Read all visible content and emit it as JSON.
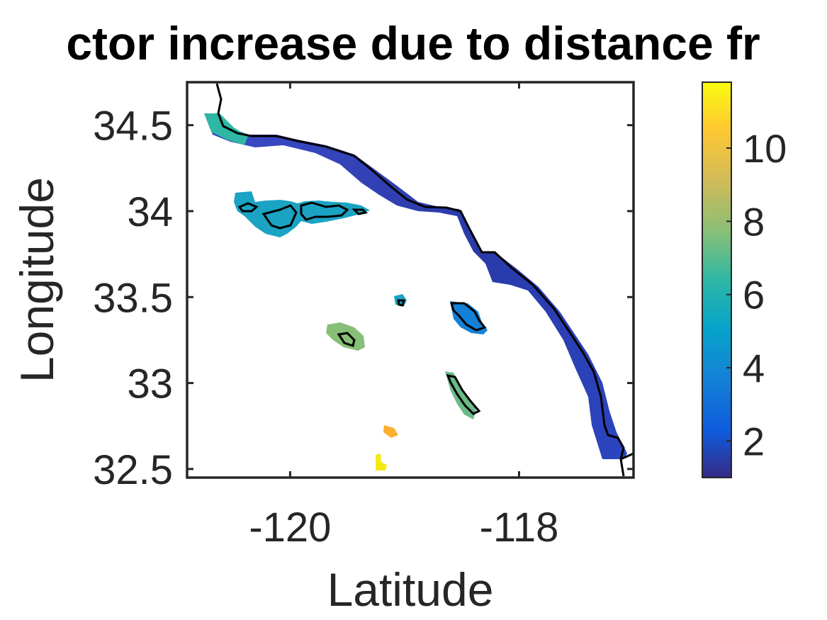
{
  "chart_data": {
    "type": "heatmap",
    "title": "ctor increase due to distance fr",
    "xlabel": "Latitude",
    "ylabel": "Longitude",
    "xlim": [
      -120.9,
      -117.0
    ],
    "ylim": [
      32.45,
      34.75
    ],
    "x_ticks": [
      -120,
      -118
    ],
    "x_tick_labels": [
      "-120",
      "-118"
    ],
    "y_ticks": [
      32.5,
      33,
      33.5,
      34,
      34.5
    ],
    "y_tick_labels": [
      "32.5",
      "33",
      "33.5",
      "34",
      "34.5"
    ],
    "grid": false,
    "colormap": "parula",
    "colorbar": {
      "range": [
        1,
        11.8
      ],
      "ticks": [
        2,
        4,
        6,
        8,
        10
      ],
      "tick_labels": [
        "2",
        "4",
        "6",
        "8",
        "10"
      ]
    },
    "regions": [
      {
        "name": "coastal band",
        "value_range": [
          1.5,
          3
        ]
      },
      {
        "name": "western coastal tip",
        "value": 6
      },
      {
        "name": "northern channel islands",
        "value": 5.5
      },
      {
        "name": "small island",
        "value": 4.5
      },
      {
        "name": "southwest island",
        "value": 7
      },
      {
        "name": "central island",
        "value": 4
      },
      {
        "name": "elongated island",
        "value": 7
      },
      {
        "name": "small southern spot",
        "value": 10
      },
      {
        "name": "southernmost spot",
        "value": 11.5
      }
    ]
  }
}
